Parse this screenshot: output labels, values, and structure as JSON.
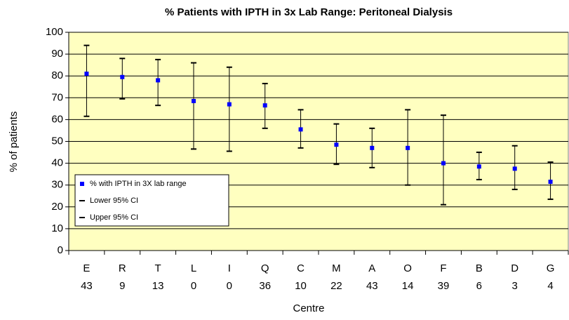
{
  "chart_data": {
    "type": "errorbar",
    "title": "% Patients with IPTH in 3x Lab Range: Peritoneal Dialysis",
    "x_label": "Centre",
    "y_label": "% of patients",
    "categories": [
      [
        "E",
        "43"
      ],
      [
        "R",
        "9"
      ],
      [
        "T",
        "13"
      ],
      [
        "L",
        "0"
      ],
      [
        "I",
        "0"
      ],
      [
        "Q",
        "36"
      ],
      [
        "C",
        "10"
      ],
      [
        "M",
        "22"
      ],
      [
        "A",
        "43"
      ],
      [
        "O",
        "14"
      ],
      [
        "F",
        "39"
      ],
      [
        "B",
        "6"
      ],
      [
        "D",
        "3"
      ],
      [
        "G",
        "4"
      ]
    ],
    "series": [
      {
        "name": "% with IPTH in 3X lab range",
        "color": "#0000ff",
        "values": [
          81,
          79.5,
          78,
          68.5,
          67,
          66.5,
          55.5,
          48.5,
          47,
          47,
          40,
          38.5,
          37.5,
          31.5
        ]
      },
      {
        "name": "Lower 95% CI",
        "color": "#000000",
        "values": [
          61.5,
          69.5,
          66.5,
          46.5,
          45.5,
          56,
          47,
          39.5,
          38,
          30,
          21,
          32.5,
          28,
          23.5
        ]
      },
      {
        "name": "Upper 95% CI",
        "color": "#000000",
        "values": [
          94,
          88,
          87.5,
          86,
          84,
          76.5,
          64.5,
          58,
          56,
          64.5,
          62,
          45,
          48,
          40.5
        ]
      }
    ],
    "ylim": [
      0,
      100
    ],
    "yticks": [
      0,
      10,
      20,
      30,
      40,
      50,
      60,
      70,
      80,
      90,
      100
    ],
    "grid": true,
    "background": "#ffffc0"
  }
}
